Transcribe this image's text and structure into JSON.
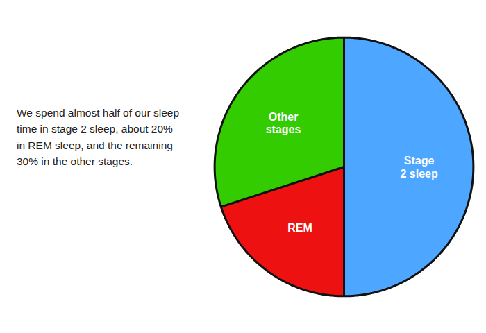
{
  "chart_data": {
    "type": "pie",
    "categories": [
      "Stage\n2 sleep",
      "REM",
      "Other\nstages"
    ],
    "values": [
      50,
      20,
      30
    ],
    "colors": [
      "#4da6ff",
      "#ee1111",
      "#33cc00"
    ],
    "annotation": "We spend almost half of our sleep\ntime in stage 2 sleep, about 20%\nin REM sleep, and the remaining\n30% in the other stages."
  }
}
